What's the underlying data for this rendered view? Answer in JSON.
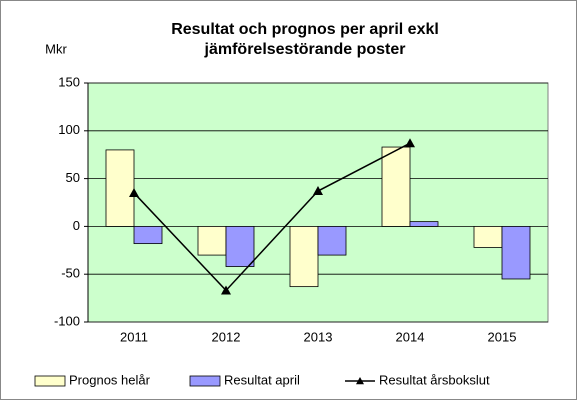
{
  "chart_data": {
    "type": "bar",
    "title": [
      "Resultat och prognos per april exkl",
      "jämförelsestörande poster"
    ],
    "y_label": "Mkr",
    "categories": [
      "2011",
      "2012",
      "2013",
      "2014",
      "2015"
    ],
    "series": [
      {
        "name": "Prognos helår",
        "color": "#ffffcc",
        "values": [
          80,
          -30,
          -63,
          83,
          -22
        ]
      },
      {
        "name": "Resultat april",
        "color": "#9999ff",
        "values": [
          -18,
          -42,
          -30,
          5,
          -55
        ]
      },
      {
        "name": "Resultat årsbokslut",
        "color": "#000000",
        "type": "line",
        "values": [
          35,
          -67,
          37,
          87,
          null
        ]
      }
    ],
    "ylim": [
      -100,
      150
    ],
    "yticks": [
      -100,
      -50,
      0,
      50,
      100,
      150
    ],
    "grid": true,
    "plot_background": "#ccffcc",
    "legend": "bottom"
  }
}
